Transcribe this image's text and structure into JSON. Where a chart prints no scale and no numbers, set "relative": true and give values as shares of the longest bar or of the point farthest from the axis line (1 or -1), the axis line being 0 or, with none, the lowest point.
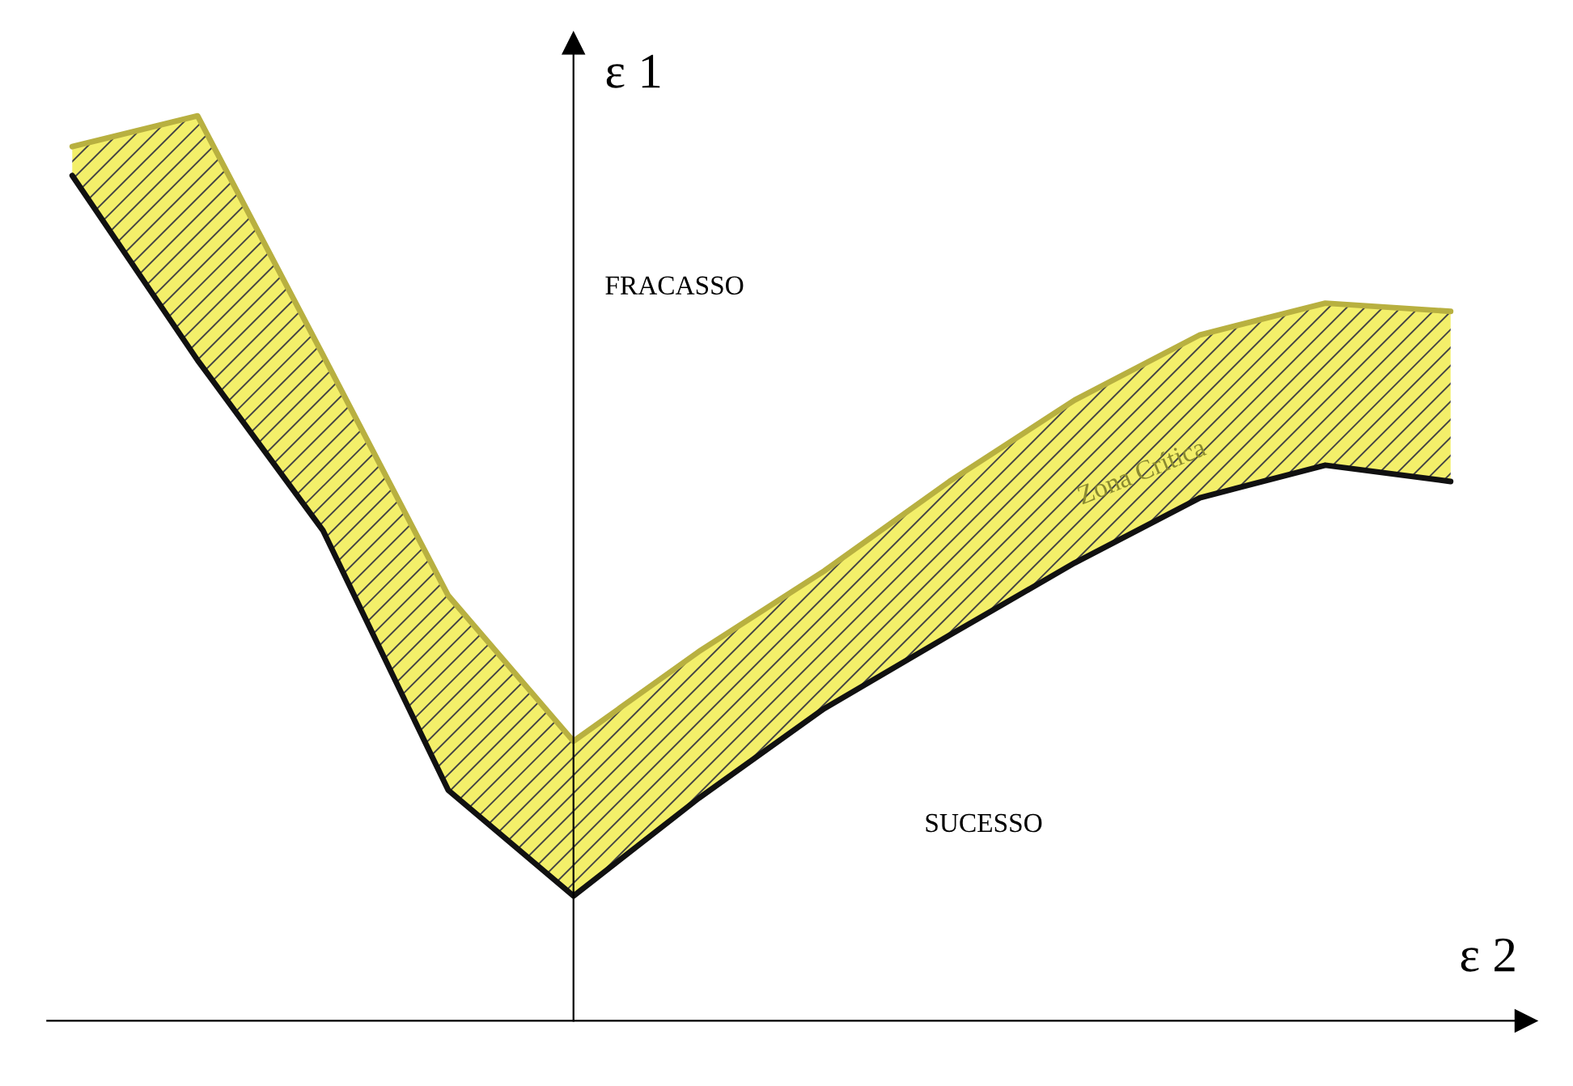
{
  "chart_data": {
    "type": "line",
    "relative": true,
    "xlabel": "ε 2",
    "ylabel": "ε 1",
    "categories": [
      null,
      null,
      null,
      null,
      null,
      null,
      null,
      null,
      null,
      null,
      null,
      null
    ],
    "series": [
      {
        "color": "#b8b040",
        "values": [
          0.966,
          1,
          0.736,
          0.47,
          0.309,
          0.408,
          0.497,
          0.596,
          0.686,
          0.758,
          0.793,
          0.784
        ],
        "upper": [
          0.966,
          1,
          0.736,
          0.47,
          0.309,
          0.408,
          0.497,
          0.596,
          0.686,
          0.758,
          0.793,
          0.784
        ],
        "lower": [
          0.934,
          0.73,
          0.542,
          0.255,
          0.138,
          0.246,
          0.345,
          0.426,
          0.506,
          0.578,
          0.614,
          0.596
        ]
      },
      {
        "color": "#111111",
        "values": [
          0.934,
          0.73,
          0.542,
          0.255,
          0.138,
          0.246,
          0.345,
          0.426,
          0.506,
          0.578,
          0.614,
          0.596
        ]
      }
    ],
    "annotations": [
      "FRACASSO",
      "SUCESSO",
      "Zona Crítica"
    ],
    "grid": false,
    "legend": false
  }
}
